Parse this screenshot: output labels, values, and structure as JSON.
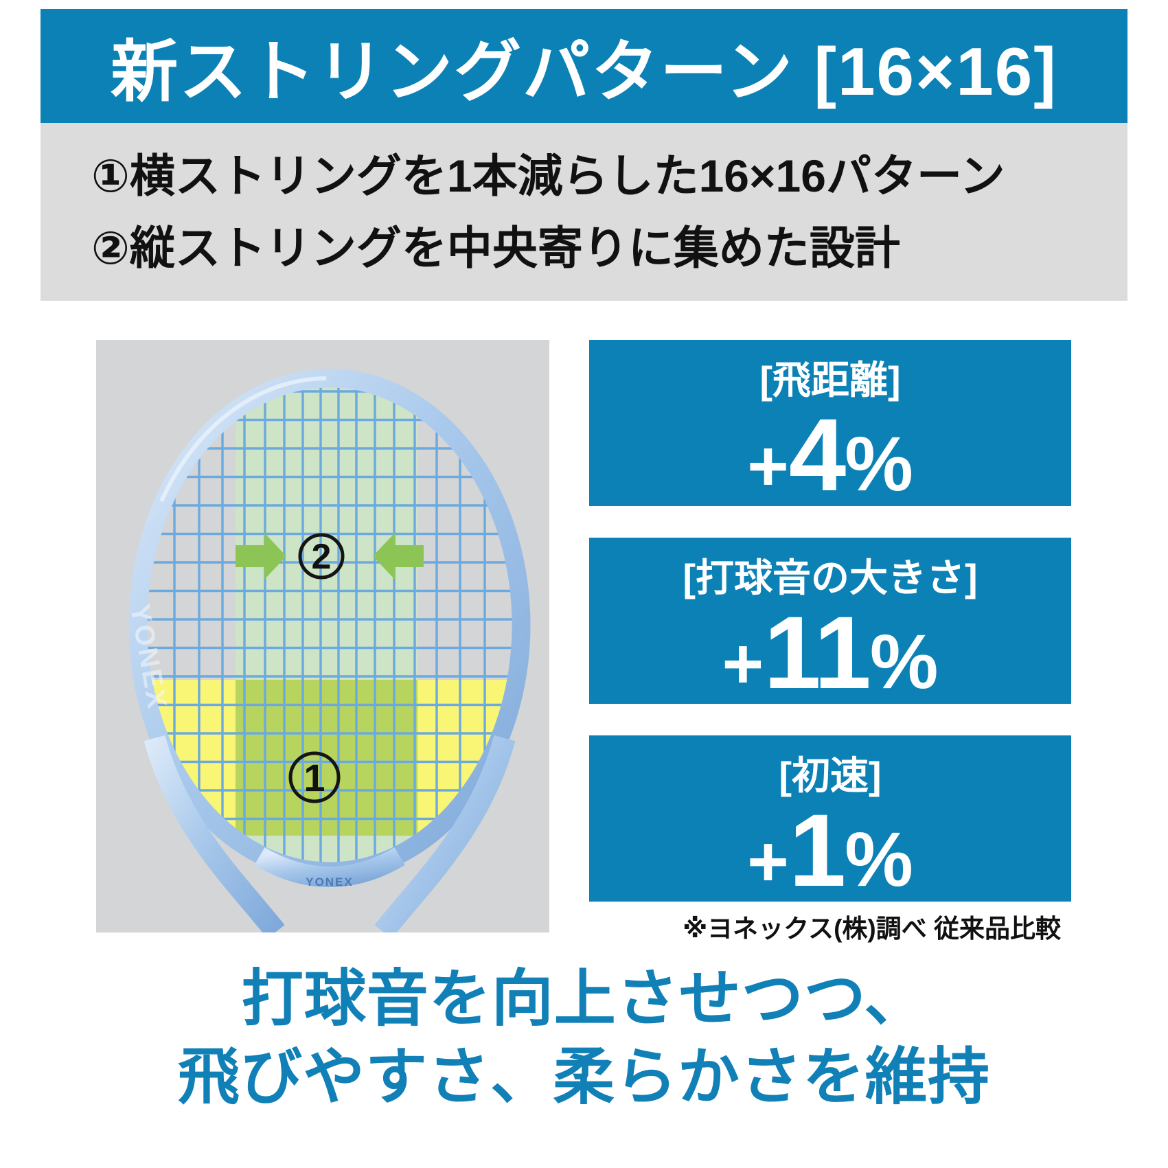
{
  "banner": {
    "title": "新ストリングパターン [16×16]"
  },
  "intro": {
    "line1": "①横ストリングを1本減らした16×16パターン",
    "line2": "②縦ストリングを中央寄りに集めた設計"
  },
  "diagram": {
    "brand": "YONEX",
    "side_brand": "YONEX",
    "marker1": "1",
    "marker2": "2",
    "pattern_mains": 16,
    "pattern_crosses": 16
  },
  "stats": [
    {
      "label": "[飛距離]",
      "plus": "+",
      "value": "4",
      "unit": "%"
    },
    {
      "label": "[打球音の大きさ]",
      "plus": "+",
      "value": "11",
      "unit": "%"
    },
    {
      "label": "[初速]",
      "plus": "+",
      "value": "1",
      "unit": "%"
    }
  ],
  "footnote": "※ヨネックス(株)調べ 従来品比較",
  "headline": {
    "line1": "打球音を向上させつつ、",
    "line2": "飛びやすさ、柔らかさを維持"
  },
  "colors": {
    "brand_blue": "#0b81b6",
    "headline_blue": "#1080b7",
    "panel_gray": "#dcdcdc",
    "photo_gray": "#d4d5d6",
    "zone_green": "#cde4c6",
    "zone_yellow": "#f9f575",
    "zone_overlap": "#b7d55e",
    "arrow_green": "#8cc556",
    "string_blue": "#6ca9de",
    "frame_blue_light": "#dbe9f8",
    "frame_blue_dark": "#7fa9da",
    "text_black": "#111111",
    "text_white": "#ffffff"
  }
}
